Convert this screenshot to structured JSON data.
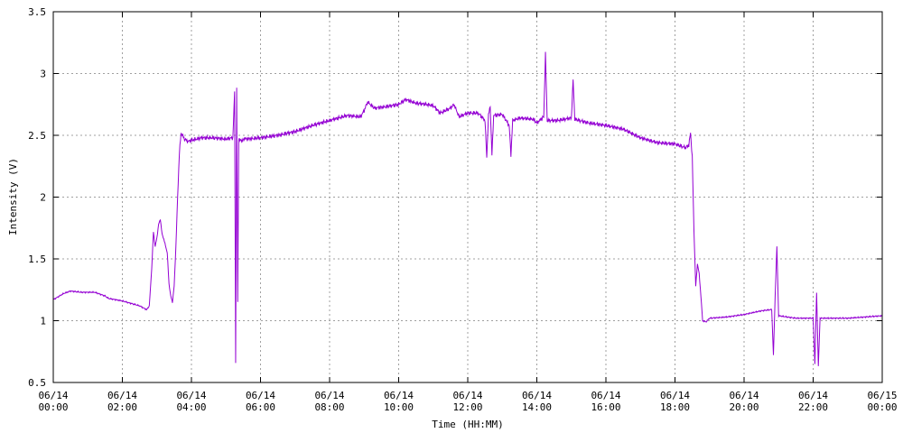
{
  "chart_data": {
    "type": "line",
    "title": "",
    "xlabel": "Time (HH:MM)",
    "ylabel": "Intensity (V)",
    "xlim_hours": [
      0,
      24
    ],
    "ylim": [
      0.5,
      3.5
    ],
    "grid": true,
    "line_color": "#9400d3",
    "yticks": [
      {
        "v": 0.5,
        "label": "0.5"
      },
      {
        "v": 1,
        "label": "1"
      },
      {
        "v": 1.5,
        "label": "1.5"
      },
      {
        "v": 2,
        "label": "2"
      },
      {
        "v": 2.5,
        "label": "2.5"
      },
      {
        "v": 3,
        "label": "3"
      },
      {
        "v": 3.5,
        "label": "3.5"
      }
    ],
    "xticks": [
      {
        "h": 0,
        "date": "06/14",
        "time": "00:00"
      },
      {
        "h": 2,
        "date": "06/14",
        "time": "02:00"
      },
      {
        "h": 4,
        "date": "06/14",
        "time": "04:00"
      },
      {
        "h": 6,
        "date": "06/14",
        "time": "06:00"
      },
      {
        "h": 8,
        "date": "06/14",
        "time": "08:00"
      },
      {
        "h": 10,
        "date": "06/14",
        "time": "10:00"
      },
      {
        "h": 12,
        "date": "06/14",
        "time": "12:00"
      },
      {
        "h": 14,
        "date": "06/14",
        "time": "14:00"
      },
      {
        "h": 16,
        "date": "06/14",
        "time": "16:00"
      },
      {
        "h": 18,
        "date": "06/14",
        "time": "18:00"
      },
      {
        "h": 20,
        "date": "06/14",
        "time": "20:00"
      },
      {
        "h": 22,
        "date": "06/14",
        "time": "22:00"
      },
      {
        "h": 24,
        "date": "06/15",
        "time": "00:00"
      }
    ],
    "series": [
      {
        "name": "",
        "points": [
          [
            0.0,
            1.17
          ],
          [
            0.3,
            1.22
          ],
          [
            0.5,
            1.24
          ],
          [
            0.8,
            1.23
          ],
          [
            1.2,
            1.23
          ],
          [
            1.5,
            1.2
          ],
          [
            1.6,
            1.18
          ],
          [
            2.0,
            1.16
          ],
          [
            2.5,
            1.12
          ],
          [
            2.7,
            1.09
          ],
          [
            2.78,
            1.12
          ],
          [
            2.85,
            1.42
          ],
          [
            2.9,
            1.72
          ],
          [
            2.95,
            1.6
          ],
          [
            3.0,
            1.67
          ],
          [
            3.05,
            1.78
          ],
          [
            3.1,
            1.82
          ],
          [
            3.15,
            1.7
          ],
          [
            3.2,
            1.66
          ],
          [
            3.3,
            1.55
          ],
          [
            3.35,
            1.3
          ],
          [
            3.4,
            1.2
          ],
          [
            3.45,
            1.15
          ],
          [
            3.5,
            1.28
          ],
          [
            3.55,
            1.6
          ],
          [
            3.6,
            2.0
          ],
          [
            3.65,
            2.35
          ],
          [
            3.7,
            2.52
          ],
          [
            3.8,
            2.47
          ],
          [
            3.9,
            2.45
          ],
          [
            4.0,
            2.46
          ],
          [
            4.3,
            2.48
          ],
          [
            4.6,
            2.48
          ],
          [
            5.0,
            2.47
          ],
          [
            5.2,
            2.48
          ],
          [
            5.25,
            2.85
          ],
          [
            5.28,
            0.66
          ],
          [
            5.31,
            2.87
          ],
          [
            5.34,
            1.15
          ],
          [
            5.37,
            2.46
          ],
          [
            5.6,
            2.47
          ],
          [
            6.0,
            2.48
          ],
          [
            6.5,
            2.5
          ],
          [
            7.0,
            2.53
          ],
          [
            7.5,
            2.58
          ],
          [
            8.0,
            2.62
          ],
          [
            8.5,
            2.66
          ],
          [
            8.9,
            2.65
          ],
          [
            9.0,
            2.7
          ],
          [
            9.1,
            2.77
          ],
          [
            9.3,
            2.72
          ],
          [
            9.6,
            2.73
          ],
          [
            10.0,
            2.75
          ],
          [
            10.2,
            2.79
          ],
          [
            10.5,
            2.76
          ],
          [
            10.8,
            2.75
          ],
          [
            11.0,
            2.74
          ],
          [
            11.2,
            2.68
          ],
          [
            11.5,
            2.72
          ],
          [
            11.6,
            2.75
          ],
          [
            11.75,
            2.65
          ],
          [
            12.0,
            2.68
          ],
          [
            12.3,
            2.68
          ],
          [
            12.5,
            2.62
          ],
          [
            12.55,
            2.32
          ],
          [
            12.6,
            2.66
          ],
          [
            12.65,
            2.74
          ],
          [
            12.7,
            2.34
          ],
          [
            12.75,
            2.66
          ],
          [
            13.0,
            2.67
          ],
          [
            13.2,
            2.58
          ],
          [
            13.25,
            2.34
          ],
          [
            13.3,
            2.62
          ],
          [
            13.5,
            2.64
          ],
          [
            13.9,
            2.63
          ],
          [
            14.0,
            2.6
          ],
          [
            14.2,
            2.65
          ],
          [
            14.25,
            3.16
          ],
          [
            14.3,
            2.62
          ],
          [
            14.6,
            2.62
          ],
          [
            15.0,
            2.64
          ],
          [
            15.05,
            2.95
          ],
          [
            15.1,
            2.63
          ],
          [
            15.5,
            2.6
          ],
          [
            16.0,
            2.58
          ],
          [
            16.5,
            2.55
          ],
          [
            17.0,
            2.48
          ],
          [
            17.5,
            2.44
          ],
          [
            18.0,
            2.43
          ],
          [
            18.3,
            2.4
          ],
          [
            18.4,
            2.42
          ],
          [
            18.45,
            2.52
          ],
          [
            18.5,
            2.32
          ],
          [
            18.55,
            1.72
          ],
          [
            18.6,
            1.28
          ],
          [
            18.65,
            1.46
          ],
          [
            18.7,
            1.38
          ],
          [
            18.75,
            1.2
          ],
          [
            18.8,
            1.0
          ],
          [
            18.9,
            0.99
          ],
          [
            19.0,
            1.02
          ],
          [
            19.5,
            1.03
          ],
          [
            20.0,
            1.05
          ],
          [
            20.5,
            1.08
          ],
          [
            20.8,
            1.09
          ],
          [
            20.85,
            0.72
          ],
          [
            20.9,
            1.2
          ],
          [
            20.95,
            1.6
          ],
          [
            21.0,
            1.04
          ],
          [
            21.5,
            1.02
          ],
          [
            22.0,
            1.02
          ],
          [
            22.05,
            0.65
          ],
          [
            22.1,
            1.23
          ],
          [
            22.15,
            0.63
          ],
          [
            22.2,
            1.02
          ],
          [
            22.5,
            1.02
          ],
          [
            23.0,
            1.02
          ],
          [
            23.5,
            1.03
          ],
          [
            24.0,
            1.04
          ]
        ]
      }
    ]
  }
}
